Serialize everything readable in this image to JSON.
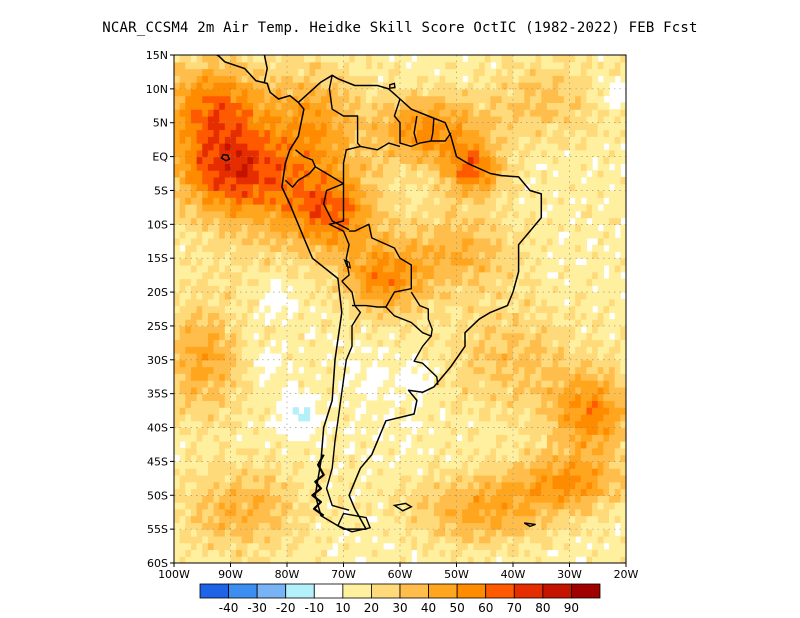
{
  "title": "NCAR_CCSM4  2m Air Temp. Heidke Skill Score OctIC (1982-2022) FEB Fcst",
  "map": {
    "lon_range": [
      -100,
      -20
    ],
    "lat_range": [
      -60,
      15
    ],
    "lat_ticks": [
      {
        "value": 15,
        "label": "15N"
      },
      {
        "value": 10,
        "label": "10N"
      },
      {
        "value": 5,
        "label": "5N"
      },
      {
        "value": 0,
        "label": "EQ"
      },
      {
        "value": -5,
        "label": "5S"
      },
      {
        "value": -10,
        "label": "10S"
      },
      {
        "value": -15,
        "label": "15S"
      },
      {
        "value": -20,
        "label": "20S"
      },
      {
        "value": -25,
        "label": "25S"
      },
      {
        "value": -30,
        "label": "30S"
      },
      {
        "value": -35,
        "label": "35S"
      },
      {
        "value": -40,
        "label": "40S"
      },
      {
        "value": -45,
        "label": "45S"
      },
      {
        "value": -50,
        "label": "50S"
      },
      {
        "value": -55,
        "label": "55S"
      },
      {
        "value": -60,
        "label": "60S"
      }
    ],
    "lon_ticks": [
      {
        "value": -100,
        "label": "100W"
      },
      {
        "value": -90,
        "label": "90W"
      },
      {
        "value": -80,
        "label": "80W"
      },
      {
        "value": -70,
        "label": "70W"
      },
      {
        "value": -60,
        "label": "60W"
      },
      {
        "value": -50,
        "label": "50W"
      },
      {
        "value": -40,
        "label": "40W"
      },
      {
        "value": -30,
        "label": "30W"
      },
      {
        "value": -20,
        "label": "20W"
      }
    ],
    "grid": true,
    "coast": [
      [
        -78,
        8
      ],
      [
        -77,
        7
      ],
      [
        -78,
        3
      ],
      [
        -79.5,
        1
      ],
      [
        -80.3,
        -1
      ],
      [
        -80.9,
        -4.5
      ],
      [
        -79.5,
        -7
      ],
      [
        -77,
        -12
      ],
      [
        -75.5,
        -15
      ],
      [
        -71,
        -18
      ],
      [
        -70.3,
        -23
      ],
      [
        -71.5,
        -30
      ],
      [
        -72,
        -36
      ],
      [
        -73.5,
        -40
      ],
      [
        -74,
        -45
      ],
      [
        -75,
        -50
      ],
      [
        -74,
        -53
      ],
      [
        -70,
        -55
      ],
      [
        -66,
        -55
      ],
      [
        -68,
        -52
      ],
      [
        -69,
        -50
      ],
      [
        -67,
        -46
      ],
      [
        -65,
        -44
      ],
      [
        -62.5,
        -39
      ],
      [
        -57.5,
        -38
      ],
      [
        -57,
        -36
      ],
      [
        -58.5,
        -34.5
      ],
      [
        -56,
        -34.8
      ],
      [
        -54,
        -34
      ],
      [
        -53,
        -33
      ],
      [
        -51,
        -31
      ],
      [
        -48.5,
        -28
      ],
      [
        -48.5,
        -26
      ],
      [
        -46,
        -24
      ],
      [
        -44,
        -23
      ],
      [
        -41,
        -22
      ],
      [
        -40,
        -20
      ],
      [
        -39,
        -17
      ],
      [
        -39,
        -13
      ],
      [
        -37,
        -11
      ],
      [
        -35,
        -9
      ],
      [
        -35,
        -5.5
      ],
      [
        -37,
        -5
      ],
      [
        -39,
        -3
      ],
      [
        -42,
        -2.8
      ],
      [
        -44,
        -2.5
      ],
      [
        -48,
        -1
      ],
      [
        -50,
        0
      ],
      [
        -51,
        3
      ],
      [
        -52,
        5
      ],
      [
        -55,
        6
      ],
      [
        -58,
        7
      ],
      [
        -60,
        8.5
      ],
      [
        -62,
        10
      ],
      [
        -64,
        10.5
      ],
      [
        -68,
        10.5
      ],
      [
        -71,
        11.5
      ],
      [
        -72,
        12
      ],
      [
        -74,
        11
      ],
      [
        -76,
        9.5
      ],
      [
        -78,
        8
      ]
    ],
    "central_america": [
      [
        -78,
        8
      ],
      [
        -79.5,
        9
      ],
      [
        -81.5,
        8.5
      ],
      [
        -83,
        9.5
      ],
      [
        -83.5,
        10.8
      ],
      [
        -85.5,
        11.2
      ],
      [
        -87.5,
        13
      ],
      [
        -91,
        14
      ],
      [
        -92,
        14.8
      ],
      [
        -94,
        15.8
      ],
      [
        -96,
        15.8
      ]
    ],
    "central_america_north": [
      [
        -96,
        15.8
      ],
      [
        -94,
        18
      ],
      [
        -92,
        18.5
      ],
      [
        -91,
        19.5
      ],
      [
        -88,
        19
      ],
      [
        -88.5,
        16
      ],
      [
        -86,
        16
      ],
      [
        -84,
        15
      ],
      [
        -83.5,
        13
      ],
      [
        -84,
        11
      ]
    ],
    "borders": [
      [
        [
          -78.5,
          1
        ],
        [
          -77,
          0
        ],
        [
          -75.5,
          -0.5
        ],
        [
          -75,
          -1.5
        ],
        [
          -76,
          -2.5
        ],
        [
          -78,
          -3.5
        ],
        [
          -79,
          -4.5
        ],
        [
          -80.3,
          -3.5
        ]
      ],
      [
        [
          -75,
          -1.5
        ],
        [
          -73,
          -2.5
        ],
        [
          -70,
          -4
        ],
        [
          -70,
          -9.5
        ],
        [
          -72.5,
          -10
        ],
        [
          -70,
          -11
        ],
        [
          -69,
          -13
        ],
        [
          -69.5,
          -15
        ],
        [
          -69,
          -17.5
        ],
        [
          -70.3,
          -18.4
        ]
      ],
      [
        [
          -70.3,
          -18.4
        ],
        [
          -68.5,
          -20
        ],
        [
          -68,
          -22
        ],
        [
          -67,
          -23
        ],
        [
          -68.5,
          -25
        ],
        [
          -68.5,
          -28
        ],
        [
          -69.5,
          -30
        ],
        [
          -70,
          -33
        ],
        [
          -70.5,
          -36
        ],
        [
          -71,
          -39
        ],
        [
          -71.5,
          -42
        ],
        [
          -72,
          -46
        ],
        [
          -73,
          -49
        ],
        [
          -72,
          -51.5
        ],
        [
          -69,
          -52.2
        ]
      ],
      [
        [
          -68.5,
          -22
        ],
        [
          -66,
          -22
        ],
        [
          -64,
          -22.2
        ],
        [
          -62.5,
          -22.2
        ],
        [
          -61,
          -20
        ],
        [
          -58,
          -19.5
        ],
        [
          -58,
          -16
        ],
        [
          -60,
          -15
        ],
        [
          -61,
          -13.5
        ],
        [
          -65,
          -12
        ],
        [
          -65.5,
          -10
        ],
        [
          -68,
          -11
        ],
        [
          -69,
          -11
        ]
      ],
      [
        [
          -62.5,
          -22.2
        ],
        [
          -61,
          -23.5
        ],
        [
          -58,
          -24.5
        ],
        [
          -56,
          -26
        ],
        [
          -54.5,
          -26.5
        ],
        [
          -54.3,
          -25.5
        ],
        [
          -55,
          -24
        ],
        [
          -55,
          -22.5
        ],
        [
          -56.5,
          -22
        ],
        [
          -58,
          -20
        ]
      ],
      [
        [
          -54.5,
          -26.5
        ],
        [
          -56,
          -28
        ],
        [
          -57.5,
          -30.2
        ],
        [
          -56,
          -30.5
        ],
        [
          -53.5,
          -32.5
        ],
        [
          -53.3,
          -33.7
        ]
      ],
      [
        [
          -70,
          -4
        ],
        [
          -70,
          -1
        ],
        [
          -69.5,
          1
        ],
        [
          -67,
          1.5
        ],
        [
          -64,
          1
        ],
        [
          -62,
          2
        ],
        [
          -60,
          1.5
        ]
      ],
      [
        [
          -72,
          12
        ],
        [
          -72.5,
          10
        ],
        [
          -72,
          7
        ],
        [
          -70,
          6
        ],
        [
          -67.5,
          6
        ],
        [
          -67.5,
          2
        ],
        [
          -67,
          1.5
        ]
      ],
      [
        [
          -60,
          8.5
        ],
        [
          -61,
          6
        ],
        [
          -60,
          5
        ],
        [
          -60,
          2
        ],
        [
          -58,
          1.5
        ],
        [
          -56.5,
          2
        ],
        [
          -54.5,
          2.3
        ],
        [
          -52,
          2.3
        ],
        [
          -51,
          3.5
        ]
      ],
      [
        [
          -57,
          6
        ],
        [
          -57.5,
          3.5
        ],
        [
          -57,
          2
        ]
      ],
      [
        [
          -54,
          5.7
        ],
        [
          -54.2,
          3.5
        ],
        [
          -54.5,
          2.3
        ]
      ],
      [
        [
          -69,
          -10.8
        ],
        [
          -72,
          -9.5
        ],
        [
          -73.5,
          -7
        ],
        [
          -73,
          -5
        ],
        [
          -70,
          -4
        ]
      ]
    ],
    "lakes": [
      [
        [
          -69.8,
          -15.3
        ],
        [
          -69,
          -15.6
        ],
        [
          -68.8,
          -16.4
        ],
        [
          -69.4,
          -16.2
        ],
        [
          -69.8,
          -15.3
        ]
      ]
    ],
    "islands": [
      [
        [
          -70,
          -52.7
        ],
        [
          -66,
          -53.3
        ],
        [
          -65.3,
          -54.8
        ],
        [
          -68.5,
          -55.4
        ],
        [
          -71,
          -54.5
        ],
        [
          -70,
          -52.7
        ]
      ],
      [
        [
          -61,
          -51.5
        ],
        [
          -59,
          -51.2
        ],
        [
          -58,
          -51.7
        ],
        [
          -59.5,
          -52.3
        ],
        [
          -61,
          -51.5
        ]
      ],
      [
        [
          -38,
          -54.1
        ],
        [
          -36,
          -54.3
        ],
        [
          -37,
          -54.6
        ],
        [
          -38,
          -54.1
        ]
      ],
      [
        [
          -61.8,
          10.1
        ],
        [
          -60.9,
          10.2
        ],
        [
          -61,
          10.8
        ],
        [
          -61.8,
          10.6
        ],
        [
          -61.8,
          10.1
        ]
      ],
      [
        [
          -91.6,
          -0.2
        ],
        [
          -90.8,
          -0.6
        ],
        [
          -90.2,
          -0.4
        ],
        [
          -90.5,
          0.2
        ],
        [
          -91.3,
          0.3
        ],
        [
          -91.6,
          -0.2
        ]
      ]
    ],
    "chile_fjords": [
      [
        -73.5,
        -44
      ],
      [
        -74.5,
        -45.5
      ],
      [
        -73.5,
        -47
      ],
      [
        -75,
        -48
      ],
      [
        -74,
        -49
      ],
      [
        -75.5,
        -50
      ],
      [
        -74,
        -51
      ],
      [
        -75.2,
        -52
      ],
      [
        -73.5,
        -53
      ]
    ]
  },
  "heatmap": {
    "field": "heidke_skill_score",
    "blobs": [
      {
        "lon": -93,
        "lat": 7,
        "rlon": 9,
        "rlat": 7,
        "amp": 45
      },
      {
        "lon": -90,
        "lat": -2,
        "rlon": 10,
        "rlat": 6,
        "amp": 40
      },
      {
        "lon": -75,
        "lat": 5,
        "rlon": 8,
        "rlat": 8,
        "amp": 30
      },
      {
        "lon": -55,
        "lat": 4,
        "rlon": 9,
        "rlat": 5,
        "amp": 40
      },
      {
        "lon": -47,
        "lat": -2,
        "rlon": 5,
        "rlat": 4,
        "amp": 45
      },
      {
        "lon": -72,
        "lat": -8,
        "rlon": 8,
        "rlat": 6,
        "amp": 45
      },
      {
        "lon": -63,
        "lat": -18,
        "rlon": 7,
        "rlat": 5,
        "amp": 40
      },
      {
        "lon": -50,
        "lat": -14,
        "rlon": 10,
        "rlat": 6,
        "amp": 25
      },
      {
        "lon": -85,
        "lat": -5,
        "rlon": 12,
        "rlat": 10,
        "amp": 20
      },
      {
        "lon": -26,
        "lat": -38,
        "rlon": 7,
        "rlat": 6,
        "amp": 40
      },
      {
        "lon": -30,
        "lat": -48,
        "rlon": 9,
        "rlat": 4,
        "amp": 35
      },
      {
        "lon": -45,
        "lat": -52,
        "rlon": 12,
        "rlat": 5,
        "amp": 30
      },
      {
        "lon": -95,
        "lat": -30,
        "rlon": 7,
        "rlat": 8,
        "amp": 30
      },
      {
        "lon": -88,
        "lat": -52,
        "rlon": 10,
        "rlat": 6,
        "amp": 25
      },
      {
        "lon": -40,
        "lat": -30,
        "rlon": 12,
        "rlat": 8,
        "amp": 18
      },
      {
        "lon": -35,
        "lat": 8,
        "rlon": 10,
        "rlat": 6,
        "amp": 18
      },
      {
        "lon": -78,
        "lat": -38,
        "rlon": 3,
        "rlat": 3,
        "amp": -25
      },
      {
        "lon": -82,
        "lat": -21,
        "rlon": 2.5,
        "rlat": 2.5,
        "amp": -20
      },
      {
        "lon": -57,
        "lat": -33,
        "rlon": 3,
        "rlat": 3,
        "amp": -15
      },
      {
        "lon": -84,
        "lat": -30,
        "rlon": 3,
        "rlat": 2,
        "amp": -12
      },
      {
        "lon": -22,
        "lat": 9,
        "rlon": 2,
        "rlat": 2,
        "amp": -15
      },
      {
        "lon": -65,
        "lat": -33,
        "rlon": 4,
        "rlat": 4,
        "amp": -8
      },
      {
        "lon": -60,
        "lat": -40,
        "rlon": 5,
        "rlat": 4,
        "amp": -3
      }
    ],
    "base": 14
  },
  "colorbar": {
    "colors": [
      "#1e64e6",
      "#3c8ff0",
      "#78b4f5",
      "#b4f0fa",
      "#ffffff",
      "#fff0a0",
      "#ffda7a",
      "#ffbe4c",
      "#ffa61e",
      "#ff8c00",
      "#ff5a00",
      "#e62d00",
      "#c41400",
      "#a00000"
    ],
    "bounds": [
      -50,
      -40,
      -30,
      -20,
      -10,
      10,
      20,
      30,
      40,
      50,
      60,
      70,
      80,
      90,
      100
    ],
    "labels": [
      "-40",
      "-30",
      "-20",
      "-10",
      "10",
      "20",
      "30",
      "40",
      "50",
      "60",
      "70",
      "80",
      "90"
    ]
  }
}
